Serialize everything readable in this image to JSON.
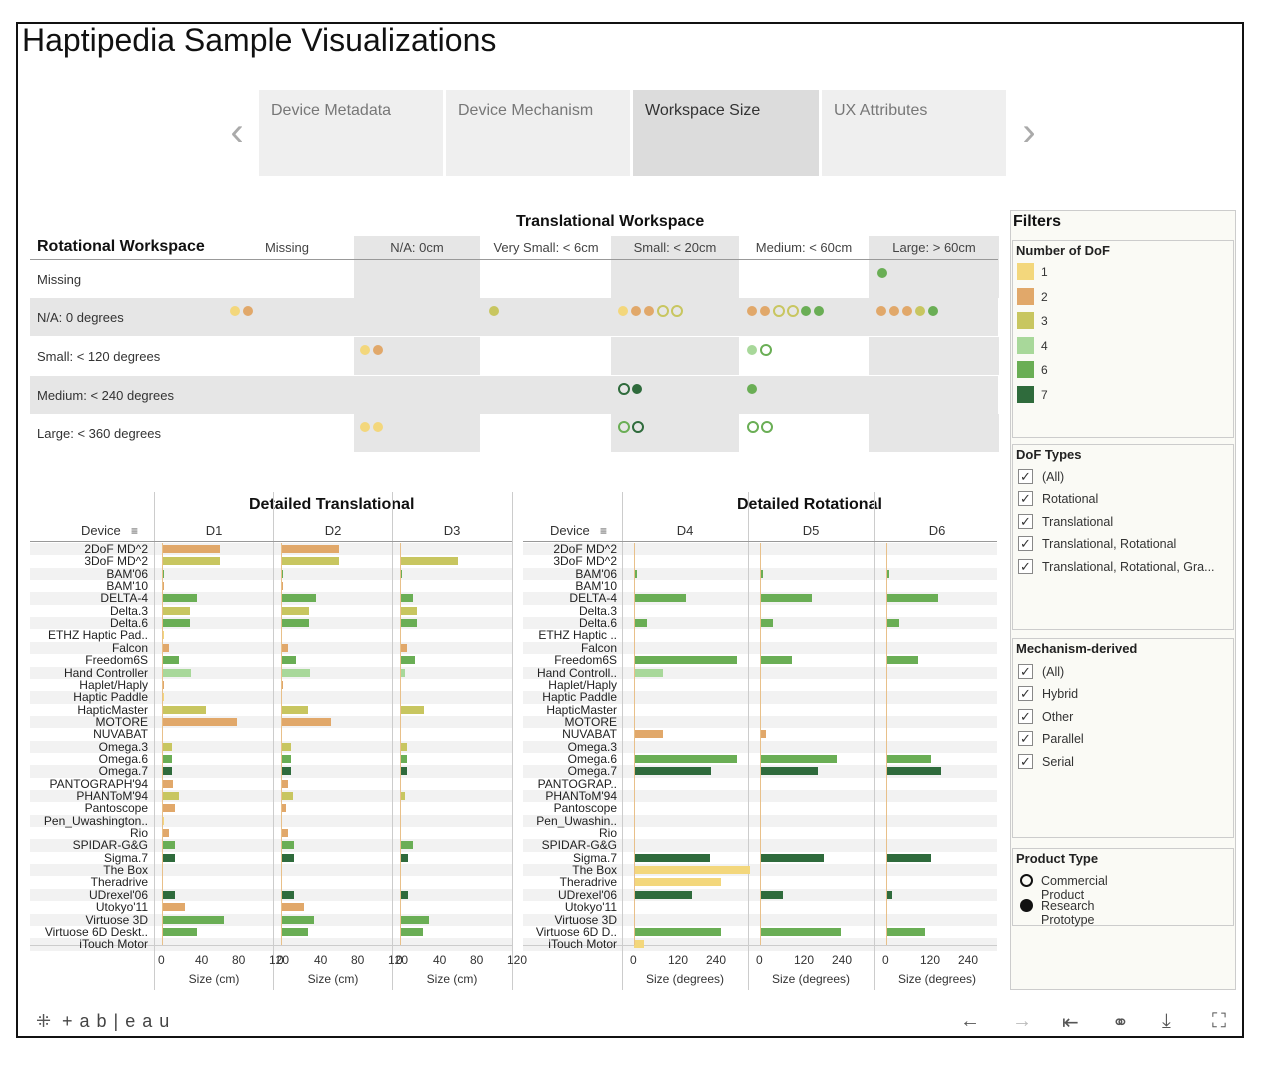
{
  "title": "Haptipedia Sample Visualizations",
  "tabs": [
    {
      "label": "Device Metadata",
      "active": false
    },
    {
      "label": "Device Mechanism",
      "active": false
    },
    {
      "label": "Workspace Size",
      "active": true
    },
    {
      "label": "UX Attributes",
      "active": false
    }
  ],
  "nav": {
    "prev": "‹",
    "next": "›"
  },
  "matrix": {
    "title_top": "Translational Workspace",
    "title_left": "Rotational Workspace",
    "columns": [
      "Missing",
      "N/A: 0cm",
      "Very Small: < 6cm",
      "Small: < 20cm",
      "Medium: < 60cm",
      "Large: > 60cm"
    ],
    "rows": [
      "Missing",
      "N/A: 0 degrees",
      "Small: < 120 degrees",
      "Medium: < 240 degrees",
      "Large: < 360 degrees"
    ]
  },
  "colors": {
    "dof1": "#f3d77c",
    "dof2": "#e1a86a",
    "dof3": "#c8c660",
    "dof4": "#a8d89a",
    "dof6": "#6aae55",
    "dof7": "#2f6b3c",
    "cell_grey": "#e6e6e6"
  },
  "filters": {
    "title": "Filters",
    "dof": {
      "title": "Number of DoF",
      "items": [
        "1",
        "2",
        "3",
        "4",
        "6",
        "7"
      ]
    },
    "dof_types": {
      "title": "DoF Types",
      "items": [
        "(All)",
        "Rotational",
        "Translational",
        "Translational, Rotational",
        "Translational, Rotational, Gra..."
      ]
    },
    "mechanism": {
      "title": "Mechanism-derived",
      "items": [
        "(All)",
        "Hybrid",
        "Other",
        "Parallel",
        "Serial"
      ]
    },
    "product": {
      "title": "Product Type",
      "items": [
        "Commercial Product",
        "Research Prototype"
      ]
    }
  },
  "detailed_trans": {
    "title": "Detailed Translational",
    "device_header": "Device",
    "columns": [
      "D1",
      "D2",
      "D3"
    ],
    "ticks": [
      "0",
      "40",
      "80",
      "120"
    ],
    "axis_title": "Size (cm)"
  },
  "detailed_rot": {
    "title": "Detailed Rotational",
    "device_header": "Device",
    "columns": [
      "D4",
      "D5",
      "D6"
    ],
    "ticks": [
      "0",
      "120",
      "240"
    ],
    "axis_title": "Size (degrees)"
  },
  "devices_trans": [
    "2DoF MD^2",
    "3DoF MD^2",
    "BAM'06",
    "BAM'10",
    "DELTA-4",
    "Delta.3",
    "Delta.6",
    "ETHZ Haptic Pad..",
    "Falcon",
    "Freedom6S",
    "Hand Controller",
    "Haplet/Haply",
    "Haptic Paddle",
    "HapticMaster",
    "MOTORE",
    "NUVABAT",
    "Omega.3",
    "Omega.6",
    "Omega.7",
    "PANTOGRAPH'94",
    "PHANToM'94",
    "Pantoscope",
    "Pen_Uwashington..",
    "Rio",
    "SPIDAR-G&G",
    "Sigma.7",
    "The Box",
    "Theradrive",
    "UDrexel'06",
    "Utokyo'11",
    "Virtuose 3D",
    "Virtuose 6D Deskt..",
    "iTouch Motor"
  ],
  "devices_rot": [
    "2DoF MD^2",
    "3DoF MD^2",
    "BAM'06",
    "BAM'10",
    "DELTA-4",
    "Delta.3",
    "Delta.6",
    "ETHZ Haptic ..",
    "Falcon",
    "Freedom6S",
    "Hand Controll..",
    "Haplet/Haply",
    "Haptic Paddle",
    "HapticMaster",
    "MOTORE",
    "NUVABAT",
    "Omega.3",
    "Omega.6",
    "Omega.7",
    "PANTOGRAP..",
    "PHANToM'94",
    "Pantoscope",
    "Pen_Uwashin..",
    "Rio",
    "SPIDAR-G&G",
    "Sigma.7",
    "The Box",
    "Theradrive",
    "UDrexel'06",
    "Utokyo'11",
    "Virtuose 3D",
    "Virtuose 6D D..",
    "iTouch Motor"
  ],
  "footer": {
    "brand": "+ a b | e a u"
  }
}
